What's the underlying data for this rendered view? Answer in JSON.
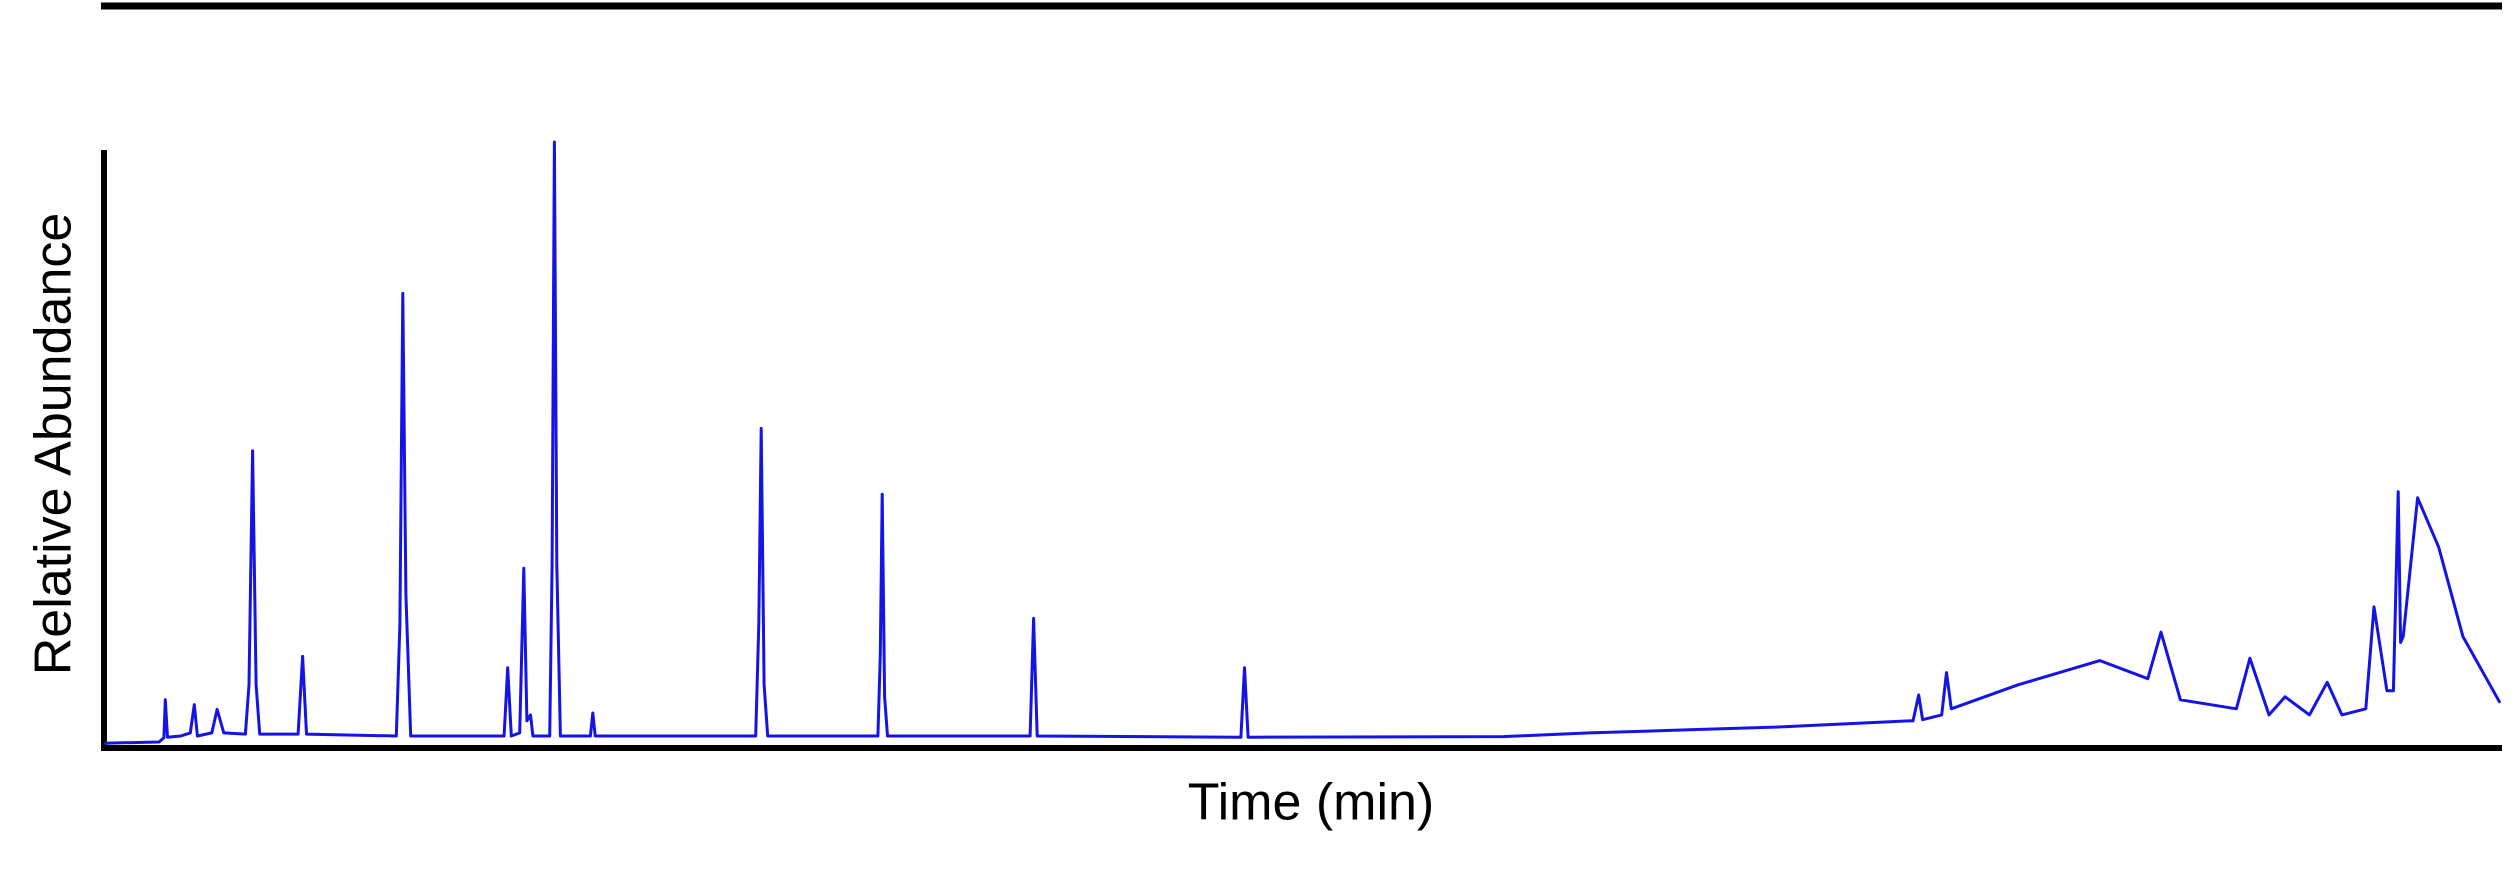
{
  "chart_data": {
    "type": "line",
    "xlabel": "Time (min)",
    "ylabel": "Relative Abundance",
    "xlim": [
      0,
      100
    ],
    "ylim": [
      0,
      100
    ],
    "series": [
      {
        "color": "#1414e6",
        "x": [
          0,
          2.3,
          2.5,
          2.56,
          2.65,
          3.2,
          3.6,
          3.77,
          3.9,
          4.5,
          4.72,
          5,
          5.9,
          6.05,
          6.2,
          6.35,
          6.5,
          8.1,
          8.29,
          8.45,
          12.2,
          12.35,
          12.47,
          12.6,
          12.8,
          16.7,
          16.85,
          17,
          17.35,
          17.52,
          17.65,
          17.8,
          17.9,
          18.6,
          18.7,
          18.8,
          18.9,
          19.05,
          20.3,
          20.4,
          20.5,
          27.2,
          27.33,
          27.43,
          27.55,
          27.7,
          32.3,
          32.4,
          32.48,
          32.58,
          32.7,
          38.65,
          38.8,
          38.95,
          47.45,
          47.6,
          47.75,
          58.4,
          62,
          66,
          70,
          75.3,
          75.5,
          75.74,
          75.9,
          76.7,
          76.9,
          77.1,
          79.9,
          83.3,
          85.3,
          85.85,
          86.66,
          89,
          89.56,
          90.36,
          91.03,
          92.05,
          92.79,
          93.4,
          94.4,
          94.74,
          95.28,
          95.55,
          95.75,
          95.85,
          95.96,
          96.56,
          97.44,
          98.45,
          100
        ],
        "values": [
          0.3,
          0.5,
          1.2,
          7.5,
          1.3,
          1.5,
          2,
          6.7,
          1.5,
          2,
          5.9,
          2,
          1.8,
          10,
          48.8,
          10,
          1.8,
          1.8,
          14.7,
          1.8,
          1.5,
          20,
          74.9,
          25,
          1.5,
          1.5,
          12.8,
          1.5,
          2,
          29.3,
          4,
          5,
          1.5,
          1.5,
          30,
          100,
          30,
          1.5,
          1.5,
          5.3,
          1.5,
          1.5,
          20,
          52.5,
          10,
          1.5,
          1.5,
          15,
          41.6,
          8,
          1.5,
          1.5,
          21,
          1.5,
          1.3,
          12.8,
          1.3,
          1.4,
          2,
          2.5,
          3,
          4,
          4,
          8.3,
          4.2,
          5,
          12,
          6,
          10,
          14,
          11,
          18.7,
          7.5,
          6,
          14.4,
          5,
          8,
          5,
          10.4,
          5,
          6,
          22.9,
          9,
          9,
          42,
          17,
          18,
          41,
          32.8,
          18,
          7
        ]
      }
    ]
  }
}
